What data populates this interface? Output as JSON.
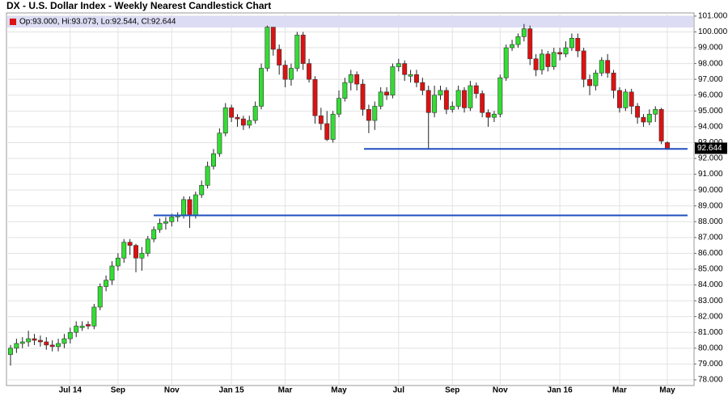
{
  "chart_data": {
    "type": "candlestick",
    "title": "DX - U.S. Dollar Index - Weekly Nearest Candlestick Chart",
    "info": "Op:93.000, Hi:93.073, Lo:92.544, Cl:92.644",
    "categories": [
      null,
      null,
      null,
      null,
      null,
      null,
      null,
      null,
      null,
      null,
      "Jul 14",
      null,
      null,
      null,
      null,
      null,
      null,
      null,
      "Sep",
      null,
      null,
      null,
      null,
      null,
      null,
      null,
      null,
      "Nov",
      null,
      null,
      null,
      null,
      null,
      null,
      null,
      null,
      null,
      "Jan 15",
      null,
      null,
      null,
      null,
      null,
      null,
      null,
      null,
      "Mar",
      null,
      null,
      null,
      null,
      null,
      null,
      null,
      null,
      "May",
      null,
      null,
      null,
      null,
      null,
      null,
      null,
      null,
      null,
      "Jul",
      null,
      null,
      null,
      null,
      null,
      null,
      null,
      null,
      "Sep",
      null,
      null,
      null,
      null,
      null,
      null,
      null,
      "Nov",
      null,
      null,
      null,
      null,
      null,
      null,
      null,
      null,
      null,
      "Jan 16",
      null,
      null,
      null,
      null,
      null,
      null,
      null,
      null,
      null,
      "Mar",
      null,
      null,
      null,
      null,
      null,
      null,
      null,
      "May"
    ],
    "open": [
      79.6,
      80.0,
      80.3,
      80.4,
      80.6,
      80.5,
      80.4,
      80.2,
      80.1,
      80.3,
      80.6,
      81.0,
      81.3,
      81.5,
      81.4,
      82.6,
      83.9,
      84.3,
      85.2,
      85.7,
      86.7,
      86.5,
      85.7,
      86.0,
      86.9,
      87.5,
      87.9,
      88.0,
      88.3,
      88.4,
      89.4,
      88.4,
      89.7,
      90.3,
      91.5,
      92.3,
      93.6,
      95.2,
      94.6,
      94.5,
      94.1,
      94.4,
      95.3,
      97.7,
      100.3,
      98.9,
      97.9,
      97.0,
      97.7,
      99.8,
      98.0,
      97.0,
      94.7,
      94.2,
      93.2,
      94.8,
      95.8,
      96.8,
      97.3,
      96.7,
      95.1,
      94.4,
      95.3,
      96.2,
      96.0,
      97.8,
      98.0,
      97.2,
      97.3,
      96.8,
      96.3,
      94.9,
      96.0,
      96.3,
      95.1,
      95.3,
      96.3,
      95.2,
      96.6,
      96.1,
      94.9,
      94.6,
      94.8,
      97.1,
      99.0,
      99.2,
      99.7,
      100.2,
      98.3,
      97.6,
      98.6,
      97.8,
      98.7,
      98.6,
      99.0,
      99.6,
      98.8,
      97.0,
      96.6,
      97.4,
      98.2,
      97.4,
      96.3,
      95.2,
      96.2,
      95.3,
      94.6,
      94.3,
      94.8,
      95.1,
      93.0
    ],
    "high": [
      80.2,
      80.6,
      80.7,
      81.1,
      80.9,
      80.8,
      80.7,
      80.5,
      80.6,
      80.9,
      81.3,
      81.7,
      81.7,
      81.7,
      82.8,
      84.1,
      84.6,
      85.5,
      86.0,
      86.9,
      86.9,
      86.6,
      86.4,
      87.1,
      87.7,
      88.2,
      88.3,
      88.5,
      88.6,
      89.6,
      89.6,
      89.9,
      90.6,
      91.8,
      92.6,
      93.9,
      95.5,
      95.4,
      94.8,
      94.7,
      94.7,
      95.6,
      98.0,
      100.4,
      100.3,
      99.2,
      98.2,
      98.0,
      100.0,
      100.0,
      98.3,
      97.2,
      95.2,
      95.0,
      95.0,
      96.3,
      97.1,
      97.6,
      97.5,
      97.0,
      95.4,
      95.6,
      96.5,
      96.5,
      98.0,
      98.3,
      98.2,
      97.6,
      97.6,
      97.1,
      96.6,
      96.6,
      96.6,
      96.5,
      95.6,
      96.6,
      96.5,
      96.9,
      96.8,
      96.3,
      95.1,
      95.0,
      97.3,
      99.2,
      99.5,
      99.9,
      100.5,
      100.4,
      98.6,
      98.9,
      98.8,
      99.0,
      99.0,
      99.4,
      99.9,
      99.9,
      99.0,
      97.3,
      97.6,
      98.4,
      98.6,
      97.6,
      96.5,
      96.4,
      96.4,
      95.5,
      94.8,
      95.1,
      95.3,
      95.2,
      93.073
    ],
    "low": [
      78.9,
      79.7,
      80.0,
      80.1,
      80.2,
      80.1,
      79.9,
      79.8,
      79.8,
      80.0,
      80.3,
      80.7,
      81.1,
      81.2,
      81.2,
      82.4,
      83.6,
      84.0,
      84.9,
      85.4,
      85.9,
      84.8,
      84.9,
      85.8,
      86.7,
      87.3,
      87.5,
      87.7,
      88.0,
      88.2,
      87.6,
      88.2,
      89.5,
      90.1,
      91.3,
      92.1,
      93.4,
      94.3,
      94.0,
      93.8,
      93.9,
      94.2,
      95.1,
      97.5,
      98.5,
      97.3,
      96.5,
      96.6,
      97.5,
      97.6,
      96.8,
      94.2,
      93.8,
      93.1,
      93.0,
      94.6,
      95.6,
      96.3,
      96.3,
      94.7,
      93.6,
      93.8,
      95.1,
      95.7,
      95.8,
      97.5,
      96.9,
      96.8,
      96.5,
      96.0,
      92.6,
      94.6,
      95.7,
      94.8,
      94.9,
      95.1,
      94.9,
      95.0,
      95.8,
      94.6,
      94.0,
      94.3,
      94.6,
      96.9,
      98.8,
      99.0,
      99.4,
      97.9,
      97.2,
      97.3,
      97.5,
      97.6,
      98.2,
      98.4,
      98.8,
      98.4,
      96.5,
      96.0,
      96.3,
      97.2,
      97.1,
      95.8,
      94.9,
      95.0,
      94.8,
      94.2,
      94.0,
      94.1,
      94.3,
      92.9,
      92.544
    ],
    "close": [
      80.0,
      80.3,
      80.4,
      80.6,
      80.5,
      80.4,
      80.2,
      80.1,
      80.3,
      80.6,
      81.0,
      81.4,
      81.4,
      81.4,
      82.6,
      83.9,
      84.3,
      85.2,
      85.7,
      86.7,
      86.5,
      85.7,
      86.0,
      86.9,
      87.5,
      87.9,
      88.0,
      88.3,
      88.4,
      89.4,
      88.4,
      89.7,
      90.3,
      91.5,
      92.3,
      93.6,
      95.2,
      94.6,
      94.5,
      94.1,
      94.4,
      95.3,
      97.7,
      100.3,
      98.9,
      97.9,
      97.0,
      97.7,
      99.8,
      98.0,
      97.0,
      94.7,
      94.2,
      93.2,
      94.8,
      95.8,
      96.8,
      97.3,
      96.7,
      95.1,
      94.4,
      95.3,
      96.2,
      96.0,
      97.8,
      98.0,
      97.3,
      97.3,
      96.8,
      96.3,
      94.9,
      96.0,
      96.3,
      95.1,
      95.3,
      96.3,
      95.2,
      96.6,
      96.1,
      94.9,
      94.6,
      94.8,
      97.1,
      99.0,
      99.2,
      99.7,
      100.2,
      98.3,
      97.6,
      98.6,
      97.8,
      98.7,
      98.6,
      99.0,
      99.6,
      98.8,
      97.0,
      96.6,
      97.4,
      98.2,
      97.4,
      96.3,
      95.2,
      96.2,
      95.3,
      94.6,
      94.3,
      94.8,
      95.1,
      93.1,
      92.644
    ],
    "up_color": "#33dd33",
    "down_color": "#dd1111",
    "hlines": [
      92.6,
      88.4
    ],
    "hline_color": "#1f4fbf",
    "ylim": [
      77.64,
      101.2
    ],
    "yticks": [
      {
        "value": 78,
        "label": "78.000"
      },
      {
        "value": 79,
        "label": "79.000"
      },
      {
        "value": 80,
        "label": "80.000"
      },
      {
        "value": 81,
        "label": "81.000"
      },
      {
        "value": 82,
        "label": "82.000"
      },
      {
        "value": 83,
        "label": "83.000"
      },
      {
        "value": 84,
        "label": "84.000"
      },
      {
        "value": 85,
        "label": "85.000"
      },
      {
        "value": 86,
        "label": "86.000"
      },
      {
        "value": 87,
        "label": "87.000"
      },
      {
        "value": 88,
        "label": "88.000"
      },
      {
        "value": 89,
        "label": "89.000"
      },
      {
        "value": 90,
        "label": "90.000"
      },
      {
        "value": 91,
        "label": "91.000"
      },
      {
        "value": 92,
        "label": "92.000"
      },
      {
        "value": 93,
        "label": "93.000"
      },
      {
        "value": 94,
        "label": "94.000"
      },
      {
        "value": 95,
        "label": "95.000"
      },
      {
        "value": 96,
        "label": "96.000"
      },
      {
        "value": 97,
        "label": "97.000"
      },
      {
        "value": 98,
        "label": "98.000"
      },
      {
        "value": 99,
        "label": "99.000"
      },
      {
        "value": 100,
        "label": "100.000"
      },
      {
        "value": 101,
        "label": "101.000"
      }
    ],
    "grid": true
  }
}
